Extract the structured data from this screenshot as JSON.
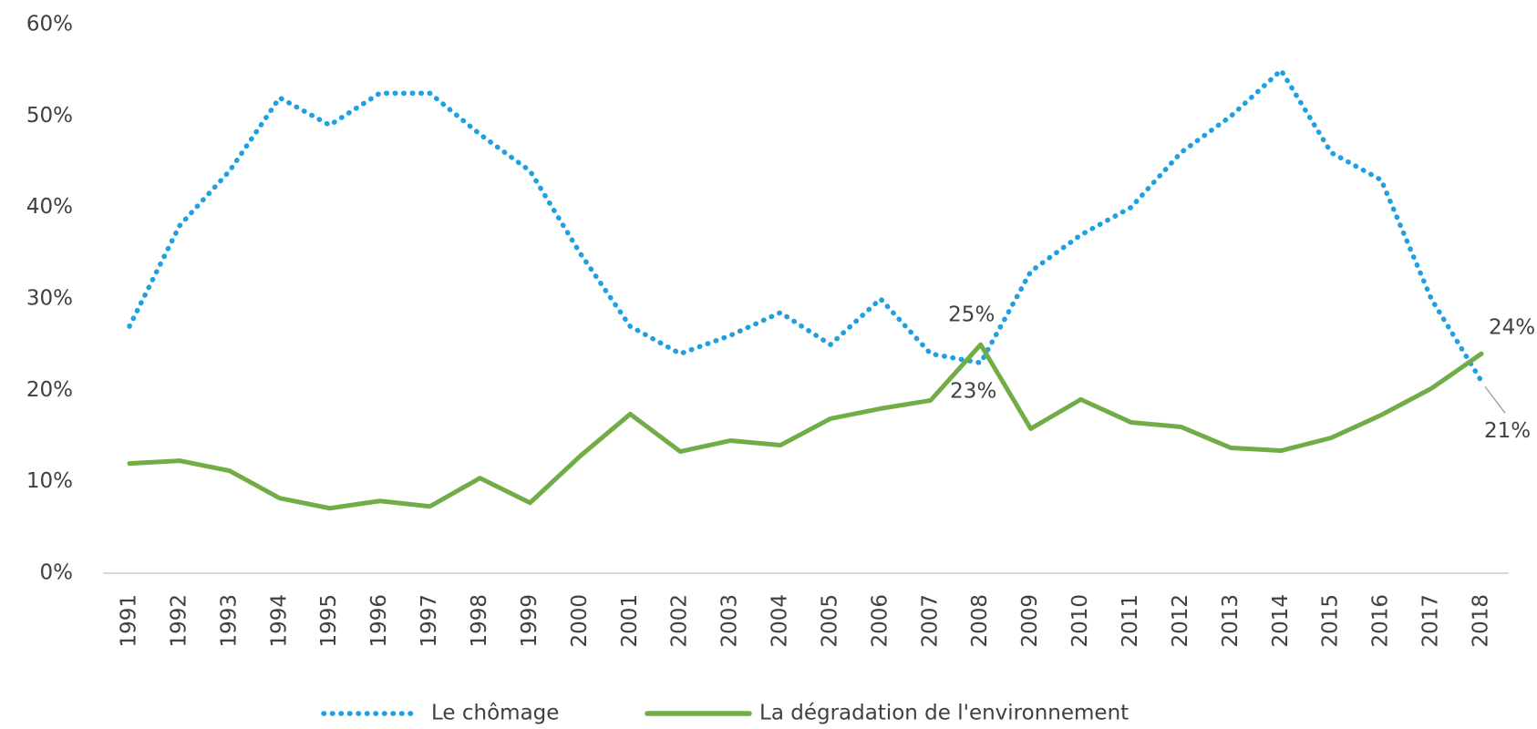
{
  "chart_data": {
    "type": "line",
    "categories": [
      "1991",
      "1992",
      "1993",
      "1994",
      "1995",
      "1996",
      "1997",
      "1998",
      "1999",
      "2000",
      "2001",
      "2002",
      "2003",
      "2004",
      "2005",
      "2006",
      "2007",
      "2008",
      "2009",
      "2010",
      "2011",
      "2012",
      "2013",
      "2014",
      "2015",
      "2016",
      "2017",
      "2018"
    ],
    "series": [
      {
        "name": "Le chômage",
        "color": "#1fa0e0",
        "style": "dotted",
        "values": [
          27,
          38,
          44,
          52,
          49,
          52.5,
          52.5,
          48,
          44,
          35,
          27,
          24,
          26,
          28.5,
          25,
          30,
          24,
          23,
          33,
          37,
          40,
          46,
          50,
          55,
          46,
          43,
          30,
          21
        ],
        "value_labels": [
          null,
          null,
          null,
          null,
          null,
          null,
          null,
          null,
          null,
          null,
          null,
          null,
          null,
          null,
          null,
          null,
          null,
          "23%",
          null,
          null,
          null,
          null,
          null,
          null,
          null,
          null,
          null,
          "21%"
        ]
      },
      {
        "name": "La dégradation de l'environnement",
        "color": "#70ad47",
        "style": "solid",
        "values": [
          12,
          12.3,
          11.2,
          8.2,
          7.1,
          7.9,
          7.3,
          10.4,
          7.7,
          12.8,
          17.4,
          13.3,
          14.5,
          14,
          16.9,
          18,
          18.9,
          25,
          15.8,
          19,
          16.5,
          16,
          13.7,
          13.4,
          14.8,
          17.3,
          20.2,
          24
        ],
        "value_labels": [
          null,
          null,
          null,
          null,
          null,
          null,
          null,
          null,
          null,
          null,
          null,
          null,
          null,
          null,
          null,
          null,
          null,
          "25%",
          null,
          null,
          null,
          null,
          null,
          null,
          null,
          null,
          null,
          "24%"
        ]
      }
    ],
    "ylim": [
      0,
      60
    ],
    "yticks": [
      {
        "value": 0,
        "label": "0%"
      },
      {
        "value": 10,
        "label": "10%"
      },
      {
        "value": 20,
        "label": "20%"
      },
      {
        "value": 30,
        "label": "30%"
      },
      {
        "value": 40,
        "label": "40%"
      },
      {
        "value": 50,
        "label": "50%"
      },
      {
        "value": 60,
        "label": "60%"
      }
    ],
    "legend": "bottom"
  }
}
